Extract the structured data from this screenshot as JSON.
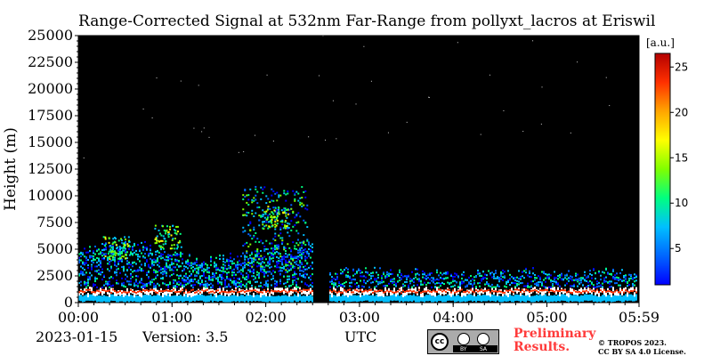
{
  "chart_data": {
    "type": "heatmap",
    "title": "Range-Corrected Signal at 532nm Far-Range from pollyxt_lacros at Eriswil",
    "xlabel": "UTC",
    "ylabel": "Height (m)",
    "x_ticks": [
      "00:00",
      "01:00",
      "02:00",
      "03:00",
      "04:00",
      "05:00",
      "05:59"
    ],
    "x_tick_hours": [
      0,
      1,
      2,
      3,
      4,
      5,
      5.983
    ],
    "xlim_hours": [
      0,
      5.983
    ],
    "y_ticks": [
      0,
      2500,
      5000,
      7500,
      10000,
      12500,
      15000,
      17500,
      20000,
      22500,
      25000
    ],
    "ylim": [
      0,
      25000
    ],
    "colorbar": {
      "label": "[a.u.]",
      "ticks": [
        5,
        10,
        15,
        20,
        25
      ],
      "range": [
        1,
        26.5
      ],
      "colormap": [
        "#0000ff",
        "#0066ff",
        "#00bfff",
        "#00ff80",
        "#80ff00",
        "#ffff00",
        "#ffa500",
        "#ff3000",
        "#b40000"
      ]
    },
    "background_color": "#000000",
    "data_gap_hours": [
      2.5,
      2.67
    ]
  },
  "footer": {
    "date": "2023-01-15",
    "version": "Version: 3.5",
    "preliminary_line1": "Preliminary",
    "preliminary_line2": "Results.",
    "copyright_line1": "© TROPOS 2023.",
    "copyright_line2": "CC BY SA 4.0 License.",
    "license_badge_by": "BY",
    "license_badge_sa": "SA"
  }
}
